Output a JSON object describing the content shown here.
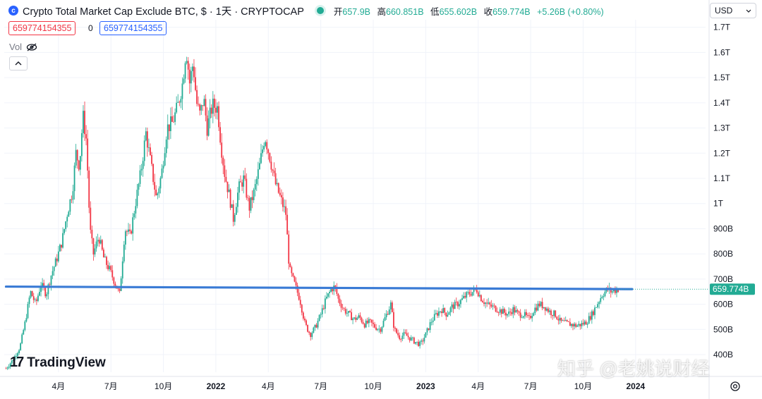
{
  "header": {
    "title": "Crypto Total Market Cap Exclude BTC, $ · 1天 · CRYPTOCAP",
    "open_label": "开",
    "open": "657.9B",
    "high_label": "高",
    "high": "660.851B",
    "low_label": "低",
    "low": "655.602B",
    "close_label": "收",
    "close": "659.774B",
    "change": "+5.26B (+0.80%)"
  },
  "indicator": {
    "value_red": "659774154355",
    "value_zero": "0",
    "value_blue": "659774154355",
    "vol_label": "Vol"
  },
  "currency": "USD",
  "watermark": {
    "brand": "TradingView",
    "author": "知乎 @老姚说财经"
  },
  "colors": {
    "up": "#22ab94",
    "down": "#f23645",
    "line": "#3a7bd5",
    "grid": "#f0f3fa"
  },
  "chart_data": {
    "type": "candlestick",
    "title": "Crypto Total Market Cap Exclude BTC",
    "y_unit": "USD",
    "ylim": [
      330,
      1730
    ],
    "y_ticks": [
      {
        "value": 400,
        "label": "400B"
      },
      {
        "value": 500,
        "label": "500B"
      },
      {
        "value": 600,
        "label": "600B"
      },
      {
        "value": 700,
        "label": "700B"
      },
      {
        "value": 800,
        "label": "800B"
      },
      {
        "value": 900,
        "label": "900B"
      },
      {
        "value": 1000,
        "label": "1T"
      },
      {
        "value": 1100,
        "label": "1.1T"
      },
      {
        "value": 1200,
        "label": "1.2T"
      },
      {
        "value": 1300,
        "label": "1.3T"
      },
      {
        "value": 1400,
        "label": "1.4T"
      },
      {
        "value": 1500,
        "label": "1.5T"
      },
      {
        "value": 1600,
        "label": "1.6T"
      },
      {
        "value": 1700,
        "label": "1.7T"
      }
    ],
    "x_ticks": [
      {
        "t": 3.0,
        "label": "4月",
        "bold": false
      },
      {
        "t": 6.0,
        "label": "7月",
        "bold": false
      },
      {
        "t": 9.0,
        "label": "10月",
        "bold": false
      },
      {
        "t": 12.0,
        "label": "2022",
        "bold": true
      },
      {
        "t": 15.0,
        "label": "4月",
        "bold": false
      },
      {
        "t": 18.0,
        "label": "7月",
        "bold": false
      },
      {
        "t": 21.0,
        "label": "10月",
        "bold": false
      },
      {
        "t": 24.0,
        "label": "2023",
        "bold": true
      },
      {
        "t": 27.0,
        "label": "4月",
        "bold": false
      },
      {
        "t": 30.0,
        "label": "7月",
        "bold": false
      },
      {
        "t": 33.0,
        "label": "10月",
        "bold": false
      },
      {
        "t": 36.0,
        "label": "2024",
        "bold": true
      }
    ],
    "xlim": [
      -0.1,
      40.0
    ],
    "series_close": [
      [
        0.0,
        345
      ],
      [
        0.4,
        380
      ],
      [
        0.8,
        430
      ],
      [
        1.1,
        530
      ],
      [
        1.4,
        650
      ],
      [
        1.7,
        600
      ],
      [
        2.0,
        680
      ],
      [
        2.3,
        640
      ],
      [
        2.6,
        720
      ],
      [
        2.9,
        780
      ],
      [
        3.2,
        850
      ],
      [
        3.5,
        960
      ],
      [
        3.8,
        1050
      ],
      [
        4.0,
        1200
      ],
      [
        4.2,
        1150
      ],
      [
        4.4,
        1350
      ],
      [
        4.6,
        1250
      ],
      [
        4.8,
        900
      ],
      [
        5.0,
        800
      ],
      [
        5.3,
        870
      ],
      [
        5.6,
        780
      ],
      [
        5.9,
        740
      ],
      [
        6.2,
        690
      ],
      [
        6.5,
        640
      ],
      [
        6.8,
        900
      ],
      [
        7.1,
        870
      ],
      [
        7.4,
        1000
      ],
      [
        7.7,
        1120
      ],
      [
        8.0,
        1280
      ],
      [
        8.3,
        1150
      ],
      [
        8.6,
        1020
      ],
      [
        8.9,
        1120
      ],
      [
        9.2,
        1300
      ],
      [
        9.5,
        1320
      ],
      [
        9.8,
        1380
      ],
      [
        10.1,
        1480
      ],
      [
        10.3,
        1620
      ],
      [
        10.5,
        1480
      ],
      [
        10.7,
        1560
      ],
      [
        10.9,
        1400
      ],
      [
        11.1,
        1350
      ],
      [
        11.3,
        1420
      ],
      [
        11.5,
        1300
      ],
      [
        11.8,
        1390
      ],
      [
        12.1,
        1380
      ],
      [
        12.3,
        1230
      ],
      [
        12.5,
        1120
      ],
      [
        12.8,
        1020
      ],
      [
        13.0,
        940
      ],
      [
        13.3,
        1060
      ],
      [
        13.6,
        1100
      ],
      [
        13.9,
        980
      ],
      [
        14.2,
        1050
      ],
      [
        14.5,
        1150
      ],
      [
        14.8,
        1270
      ],
      [
        15.1,
        1180
      ],
      [
        15.4,
        1080
      ],
      [
        15.7,
        1020
      ],
      [
        16.0,
        960
      ],
      [
        16.2,
        740
      ],
      [
        16.5,
        680
      ],
      [
        16.8,
        620
      ],
      [
        17.1,
        520
      ],
      [
        17.4,
        480
      ],
      [
        17.7,
        510
      ],
      [
        18.0,
        560
      ],
      [
        18.3,
        620
      ],
      [
        18.6,
        660
      ],
      [
        18.8,
        670
      ],
      [
        19.0,
        620
      ],
      [
        19.3,
        580
      ],
      [
        19.6,
        560
      ],
      [
        19.9,
        540
      ],
      [
        20.2,
        550
      ],
      [
        20.5,
        520
      ],
      [
        20.8,
        530
      ],
      [
        21.1,
        510
      ],
      [
        21.4,
        500
      ],
      [
        21.7,
        550
      ],
      [
        22.0,
        600
      ],
      [
        22.2,
        500
      ],
      [
        22.5,
        470
      ],
      [
        22.8,
        480
      ],
      [
        23.1,
        465
      ],
      [
        23.4,
        450
      ],
      [
        23.7,
        440
      ],
      [
        24.0,
        480
      ],
      [
        24.3,
        530
      ],
      [
        24.6,
        560
      ],
      [
        24.9,
        580
      ],
      [
        25.2,
        560
      ],
      [
        25.5,
        590
      ],
      [
        25.8,
        600
      ],
      [
        26.1,
        620
      ],
      [
        26.4,
        640
      ],
      [
        26.7,
        650
      ],
      [
        26.9,
        660
      ],
      [
        27.2,
        620
      ],
      [
        27.5,
        600
      ],
      [
        27.8,
        590
      ],
      [
        28.1,
        580
      ],
      [
        28.4,
        570
      ],
      [
        28.7,
        560
      ],
      [
        29.0,
        580
      ],
      [
        29.3,
        560
      ],
      [
        29.6,
        560
      ],
      [
        29.9,
        540
      ],
      [
        30.2,
        580
      ],
      [
        30.5,
        600
      ],
      [
        30.8,
        590
      ],
      [
        31.1,
        570
      ],
      [
        31.4,
        560
      ],
      [
        31.7,
        530
      ],
      [
        32.0,
        525
      ],
      [
        32.3,
        520
      ],
      [
        32.6,
        515
      ],
      [
        32.9,
        520
      ],
      [
        33.2,
        530
      ],
      [
        33.5,
        560
      ],
      [
        33.8,
        600
      ],
      [
        34.1,
        640
      ],
      [
        34.4,
        660
      ],
      [
        34.6,
        650
      ],
      [
        34.8,
        655
      ],
      [
        35.0,
        660
      ]
    ],
    "resistance_line": {
      "start": [
        0.0,
        670
      ],
      "end": [
        35.8,
        660
      ]
    },
    "last_price_label": "659.774B",
    "last_price": 659.774
  }
}
